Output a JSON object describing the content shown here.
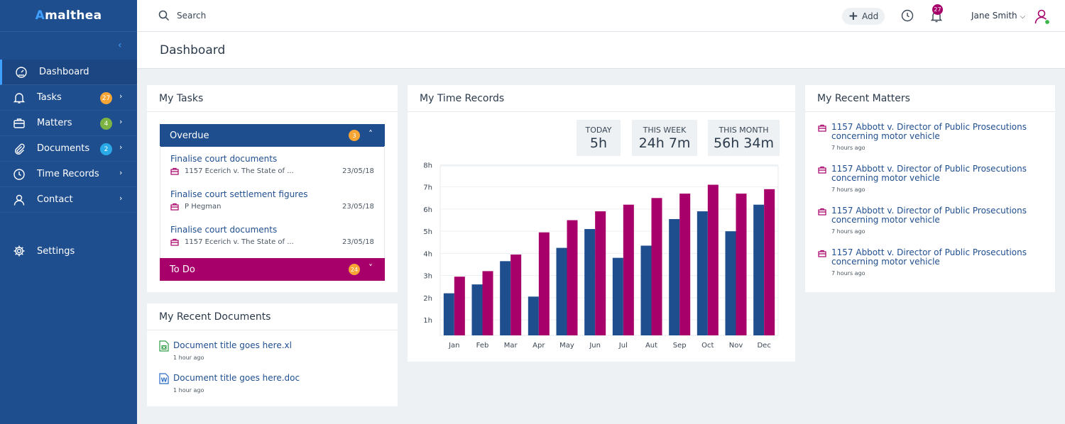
{
  "app": {
    "logo_first": "A",
    "logo_rest": "malthea"
  },
  "header": {
    "search_placeholder": "Search",
    "add_label": "Add",
    "notification_count": "27",
    "user_name": "Jane Smith"
  },
  "page": {
    "title": "Dashboard"
  },
  "sidebar": {
    "items": [
      {
        "label": "Dashboard"
      },
      {
        "label": "Tasks",
        "badge": "27"
      },
      {
        "label": "Matters",
        "badge": "4"
      },
      {
        "label": "Documents",
        "badge": "2"
      },
      {
        "label": "Time Records"
      },
      {
        "label": "Contact"
      },
      {
        "label": "Settings"
      }
    ]
  },
  "colors": {
    "primary": "#1f4e8f",
    "accent": "#a8006a",
    "orange": "#f7a535",
    "green": "#7cb342",
    "blue": "#29a9e8"
  },
  "tasks": {
    "title": "My Tasks",
    "overdue_label": "Overdue",
    "overdue_count": "3",
    "todo_label": "To Do",
    "todo_count": "24",
    "items": [
      {
        "title": "Finalise court documents",
        "matter": "1157 Ecerich v. The State of ...",
        "date": "23/05/18"
      },
      {
        "title": "Finalise court settlement figures",
        "matter": "P Hegman",
        "date": "23/05/18"
      },
      {
        "title": "Finalise court documents",
        "matter": "1157 Ecerich v. The State of ...",
        "date": "23/05/18"
      }
    ]
  },
  "documents": {
    "title": "My Recent Documents",
    "items": [
      {
        "name": "Document title goes here.xl",
        "time": "1 hour ago",
        "icon": "excel-file-icon"
      },
      {
        "name": "Document title goes here.doc",
        "time": "1 hour ago",
        "icon": "word-file-icon"
      }
    ]
  },
  "time_records": {
    "title": "My Time Records",
    "today_label": "TODAY",
    "today_value": "5h",
    "week_label": "THIS WEEK",
    "week_value": "24h 7m",
    "month_label": "THIS MONTH",
    "month_value": "56h 34m"
  },
  "chart_data": {
    "type": "bar",
    "categories": [
      "Jan",
      "Feb",
      "Mar",
      "Apr",
      "May",
      "Jun",
      "Jul",
      "Aut",
      "Sep",
      "Oct",
      "Nov",
      "Dec"
    ],
    "series": [
      {
        "name": "series-1",
        "color": "#1f4e8f",
        "values": [
          2.2,
          2.6,
          3.65,
          2.05,
          4.25,
          5.1,
          3.8,
          4.35,
          5.55,
          5.9,
          5.0,
          6.2
        ]
      },
      {
        "name": "series-2",
        "color": "#a8006a",
        "values": [
          2.95,
          3.2,
          3.95,
          4.95,
          5.5,
          5.9,
          6.2,
          6.5,
          6.7,
          7.1,
          6.7,
          6.9
        ]
      }
    ],
    "yticks": [
      "1h",
      "2h",
      "3h",
      "4h",
      "5h",
      "6h",
      "7h",
      "8h"
    ],
    "ylim": [
      0.3,
      7.95
    ],
    "grid": true
  },
  "matters": {
    "title": "My Recent Matters",
    "items": [
      {
        "line1": "1157 Abbott v. Director of Public Prosecutions",
        "line2": "concerning motor vehicle",
        "time": "7 hours ago"
      },
      {
        "line1": "1157 Abbott v. Director of Public Prosecutions",
        "line2": "concerning motor vehicle",
        "time": "7 hours ago"
      },
      {
        "line1": "1157 Abbott v. Director of Public Prosecutions",
        "line2": "concerning motor vehicle",
        "time": "7 hours ago"
      },
      {
        "line1": "1157 Abbott v. Director of Public Prosecutions",
        "line2": "concerning motor vehicle",
        "time": "7 hours ago"
      }
    ]
  }
}
